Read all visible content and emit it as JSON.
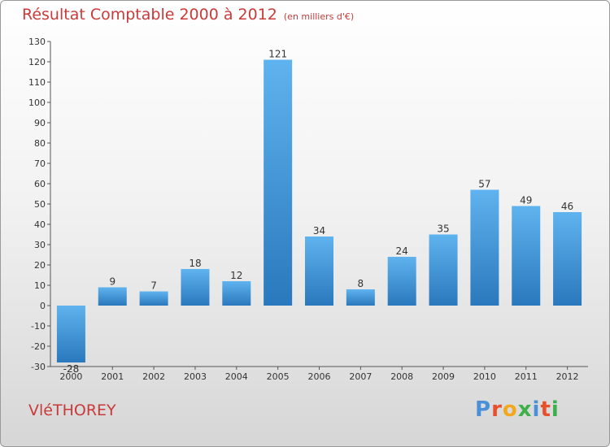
{
  "header": {
    "title": "Résultat Comptable 2000 à 2012",
    "subtitle": "(en milliers d'€)"
  },
  "footer": {
    "commune": "VléTHOREY",
    "logo_letters": [
      "P",
      "r",
      "o",
      "x",
      "i",
      "t",
      "i"
    ],
    "logo_colors": [
      "#4a90d9",
      "#e8502d",
      "#f2a81d",
      "#3db04a",
      "#4a90d9",
      "#e8502d",
      "#3db04a"
    ]
  },
  "colors": {
    "bar_light": "#5fb3ee",
    "bar_dark": "#2a78bd",
    "axis": "#555555",
    "label": "#333333"
  },
  "chart_data": {
    "type": "bar",
    "title": "Résultat Comptable 2000 à 2012",
    "subtitle": "(en milliers d'€)",
    "xlabel": "",
    "ylabel": "",
    "categories": [
      "2000",
      "2001",
      "2002",
      "2003",
      "2004",
      "2005",
      "2006",
      "2007",
      "2008",
      "2009",
      "2010",
      "2011",
      "2012"
    ],
    "values": [
      -28,
      9,
      7,
      18,
      12,
      121,
      34,
      8,
      24,
      35,
      57,
      49,
      46
    ],
    "ylim": [
      -30,
      130
    ],
    "yticks": [
      -30,
      -20,
      -10,
      0,
      10,
      20,
      30,
      40,
      50,
      60,
      70,
      80,
      90,
      100,
      110,
      120,
      130
    ],
    "grid": false
  }
}
